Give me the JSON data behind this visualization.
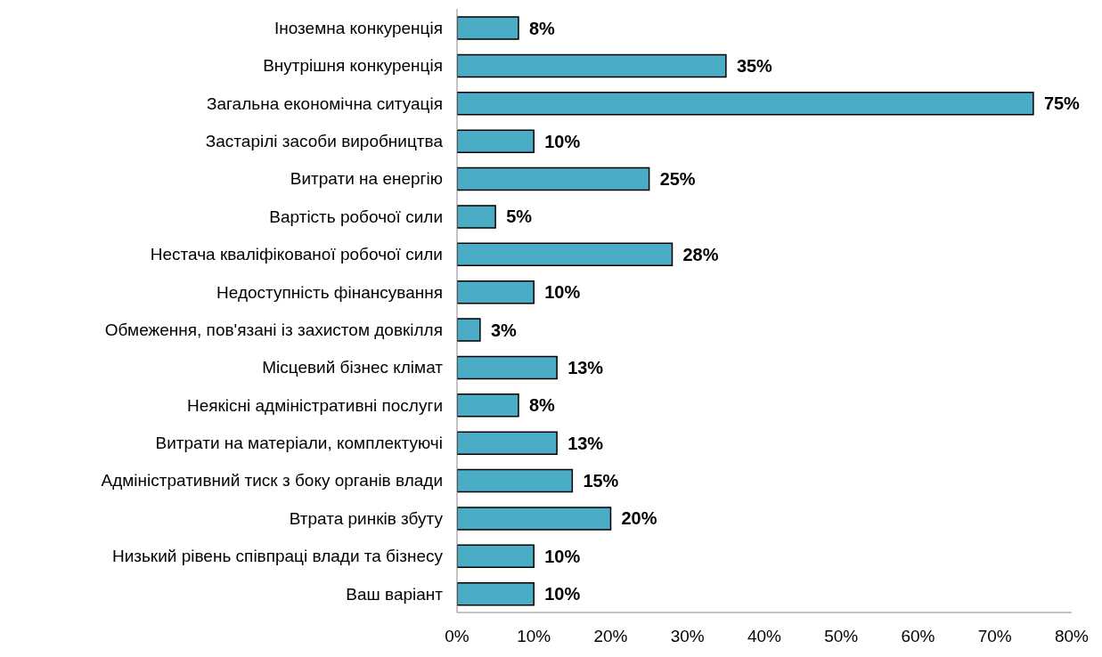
{
  "chart_data": {
    "type": "bar",
    "orientation": "horizontal",
    "categories": [
      "Іноземна конкуренція",
      "Внутрішня конкуренція",
      "Загальна економічна ситуація",
      "Застарілі засоби виробництва",
      "Витрати на енергію",
      "Вартість робочої сили",
      "Нестача кваліфікованої робочої сили",
      "Недоступність фінансування",
      "Обмеження, пов'язані із захистом довкілля",
      "Місцевий бізнес клімат",
      "Неякісні адміністративні послуги",
      "Витрати на матеріали, комплектуючі",
      "Адміністративний тиск з боку органів влади",
      "Втрата ринків збуту",
      "Низький рівень співпраці влади та бізнесу",
      "Ваш варіант"
    ],
    "values": [
      8,
      35,
      75,
      10,
      25,
      5,
      28,
      10,
      3,
      13,
      8,
      13,
      15,
      20,
      10,
      10
    ],
    "value_labels": [
      "8%",
      "35%",
      "75%",
      "10%",
      "25%",
      "5%",
      "28%",
      "10%",
      "3%",
      "13%",
      "8%",
      "13%",
      "15%",
      "20%",
      "10%",
      "10%"
    ],
    "color": "#4bacc6",
    "xlim": [
      0,
      80
    ],
    "xticks": [
      {
        "value": 0,
        "label": "0%"
      },
      {
        "value": 10,
        "label": "10%"
      },
      {
        "value": 20,
        "label": "20%"
      },
      {
        "value": 30,
        "label": "30%"
      },
      {
        "value": 40,
        "label": "40%"
      },
      {
        "value": 50,
        "label": "50%"
      },
      {
        "value": 60,
        "label": "60%"
      },
      {
        "value": 70,
        "label": "70%"
      },
      {
        "value": 80,
        "label": "80%"
      }
    ],
    "grid": false,
    "legend": false
  }
}
